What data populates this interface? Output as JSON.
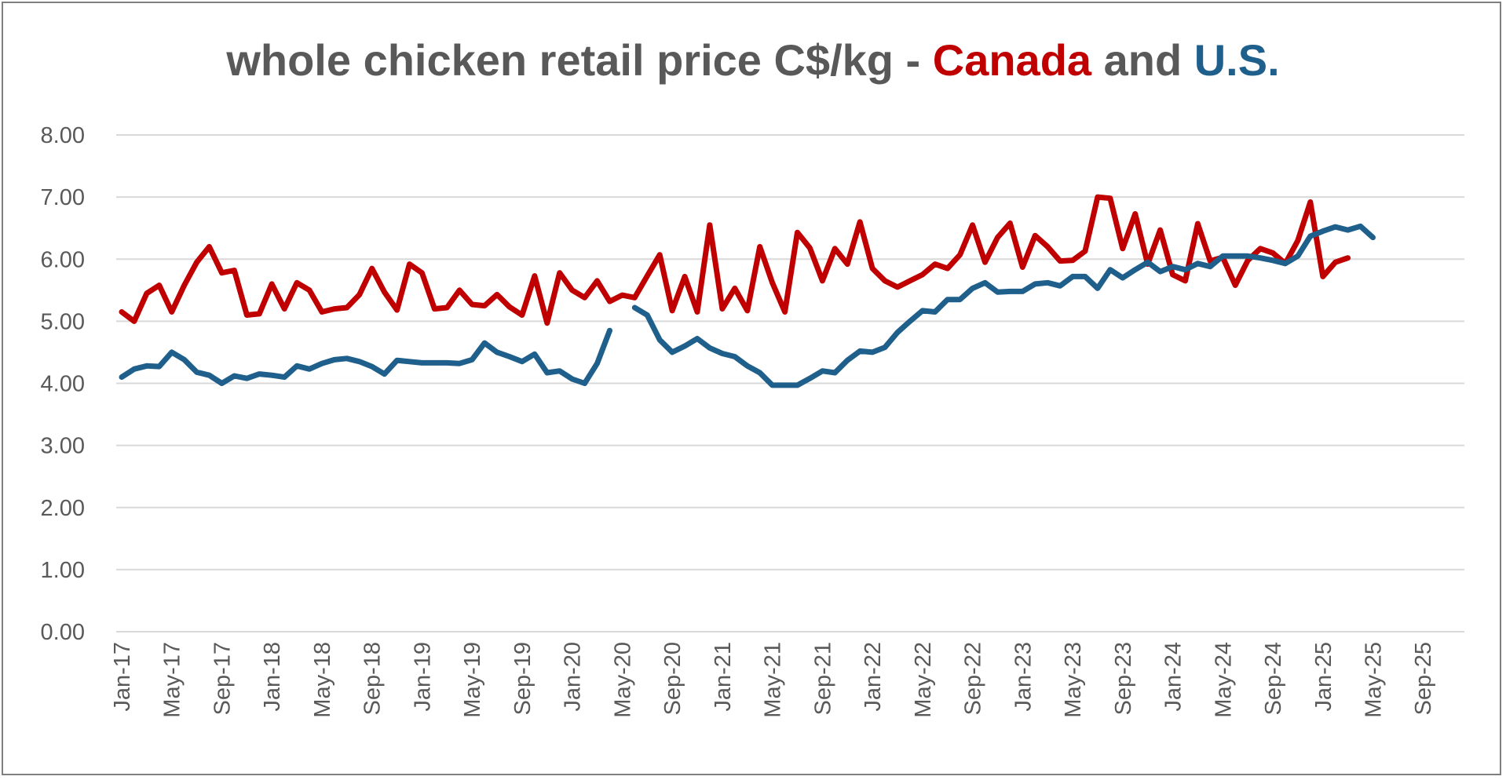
{
  "title": {
    "part1": "whole chicken retail price C$/kg - ",
    "part2": "Canada",
    "part3": " and ",
    "part4": "U.S."
  },
  "colors": {
    "canada": "#c00000",
    "us": "#1f5f8b",
    "title": "#595959",
    "grid": "#d9d9d9",
    "axis_text": "#595959"
  },
  "chart_data": {
    "type": "line",
    "title": "whole chicken retail price C$/kg - Canada and U.S.",
    "xlabel": "",
    "ylabel": "",
    "ylim": [
      0,
      8
    ],
    "yticks": [
      "0.00",
      "1.00",
      "2.00",
      "3.00",
      "4.00",
      "5.00",
      "6.00",
      "7.00",
      "8.00"
    ],
    "xticks": [
      "Jan-17",
      "May-17",
      "Sep-17",
      "Jan-18",
      "May-18",
      "Sep-18",
      "Jan-19",
      "May-19",
      "Sep-19",
      "Jan-20",
      "May-20",
      "Sep-20",
      "Jan-21",
      "May-21",
      "Sep-21",
      "Jan-22",
      "May-22",
      "Sep-22",
      "Jan-23",
      "May-23",
      "Sep-23",
      "Jan-24",
      "May-24",
      "Sep-24",
      "Jan-25",
      "May-25",
      "Sep-25"
    ],
    "x_start": "Jan-17",
    "x_frequency": "monthly",
    "grid": true,
    "legend": "none (series identified by title colors)",
    "series": [
      {
        "name": "Canada",
        "color": "#c00000",
        "values": [
          5.15,
          5.0,
          5.45,
          5.58,
          5.15,
          5.58,
          5.95,
          6.2,
          5.78,
          5.82,
          5.1,
          5.12,
          5.6,
          5.2,
          5.62,
          5.5,
          5.15,
          5.2,
          5.22,
          5.43,
          5.85,
          5.47,
          5.18,
          5.92,
          5.78,
          5.2,
          5.22,
          5.5,
          5.27,
          5.25,
          5.43,
          5.23,
          5.1,
          5.73,
          4.97,
          5.78,
          5.5,
          5.38,
          5.65,
          5.32,
          5.42,
          5.38,
          5.73,
          6.07,
          5.17,
          5.72,
          5.15,
          6.55,
          5.2,
          5.53,
          5.17,
          6.2,
          5.62,
          5.15,
          6.43,
          6.18,
          5.65,
          6.17,
          5.92,
          6.6,
          5.85,
          5.65,
          5.55,
          5.65,
          5.75,
          5.92,
          5.85,
          6.07,
          6.55,
          5.95,
          6.35,
          6.58,
          5.87,
          6.38,
          6.2,
          5.97,
          5.98,
          6.13,
          7.0,
          6.98,
          6.17,
          6.73,
          5.92,
          6.47,
          5.75,
          5.65,
          6.57,
          5.97,
          6.03,
          5.58,
          5.98,
          6.17,
          6.1,
          5.93,
          6.3,
          6.92,
          5.72,
          5.95,
          6.02
        ]
      },
      {
        "name": "U.S.",
        "color": "#1f5f8b",
        "values": [
          4.1,
          4.23,
          4.28,
          4.27,
          4.5,
          4.38,
          4.18,
          4.13,
          4.0,
          4.12,
          4.08,
          4.15,
          4.13,
          4.1,
          4.28,
          4.23,
          4.32,
          4.38,
          4.4,
          4.35,
          4.27,
          4.15,
          4.37,
          4.35,
          4.33,
          4.33,
          4.33,
          4.32,
          4.38,
          4.65,
          4.5,
          4.43,
          4.35,
          4.47,
          4.17,
          4.2,
          4.07,
          4.0,
          4.32,
          4.85,
          null,
          5.22,
          5.1,
          4.7,
          4.5,
          4.6,
          4.72,
          4.57,
          4.48,
          4.43,
          4.28,
          4.17,
          3.97,
          3.97,
          3.97,
          4.08,
          4.2,
          4.17,
          4.37,
          4.52,
          4.5,
          4.58,
          4.82,
          5.0,
          5.17,
          5.15,
          5.35,
          5.35,
          5.53,
          5.62,
          5.47,
          5.48,
          5.48,
          5.6,
          5.62,
          5.57,
          5.72,
          5.72,
          5.53,
          5.83,
          5.7,
          5.83,
          5.95,
          5.8,
          5.88,
          5.83,
          5.93,
          5.88,
          6.05,
          6.05,
          6.05,
          6.02,
          5.98,
          5.93,
          6.05,
          6.37,
          6.45,
          6.52,
          6.47,
          6.53,
          6.35
        ]
      }
    ]
  }
}
